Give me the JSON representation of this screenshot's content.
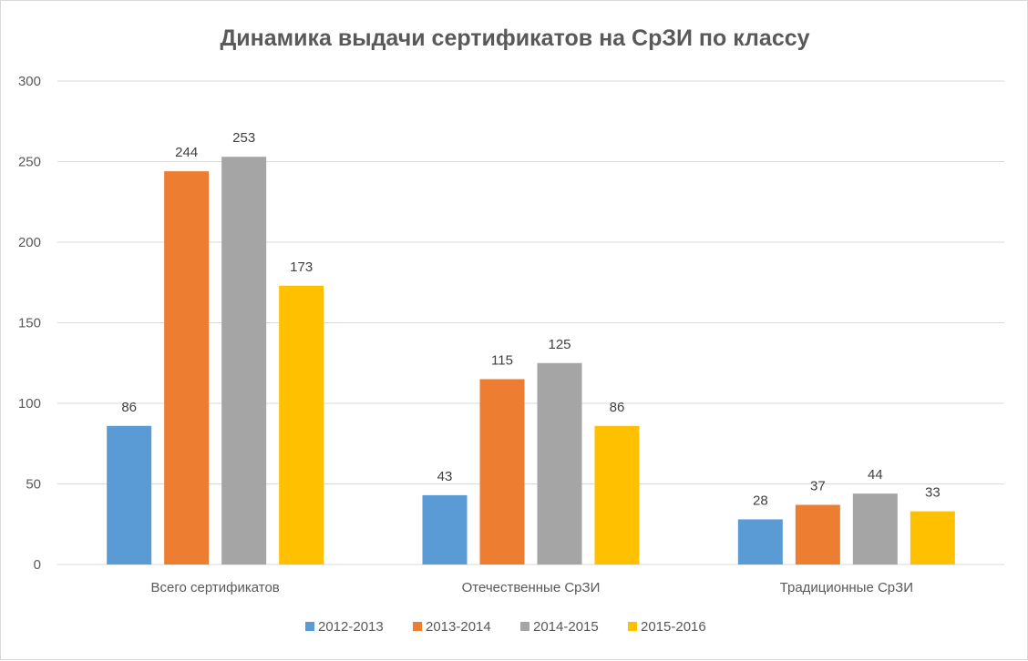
{
  "chart_data": {
    "type": "bar",
    "title": "Динамика выдачи сертификатов на СрЗИ по классу",
    "xlabel": "",
    "ylabel": "",
    "ylim": [
      0,
      300
    ],
    "yticks": [
      0,
      50,
      100,
      150,
      200,
      250,
      300
    ],
    "grid": true,
    "legend_position": "bottom",
    "categories": [
      "Всего сертификатов",
      "Отечественные СрЗИ",
      "Традиционные СрЗИ"
    ],
    "series": [
      {
        "name": "2012-2013",
        "color": "#5b9bd5",
        "values": [
          86,
          43,
          28
        ]
      },
      {
        "name": "2013-2014",
        "color": "#ed7d31",
        "values": [
          244,
          115,
          37
        ]
      },
      {
        "name": "2014-2015",
        "color": "#a5a5a5",
        "values": [
          253,
          125,
          44
        ]
      },
      {
        "name": "2015-2016",
        "color": "#ffc000",
        "values": [
          173,
          86,
          33
        ]
      }
    ]
  }
}
